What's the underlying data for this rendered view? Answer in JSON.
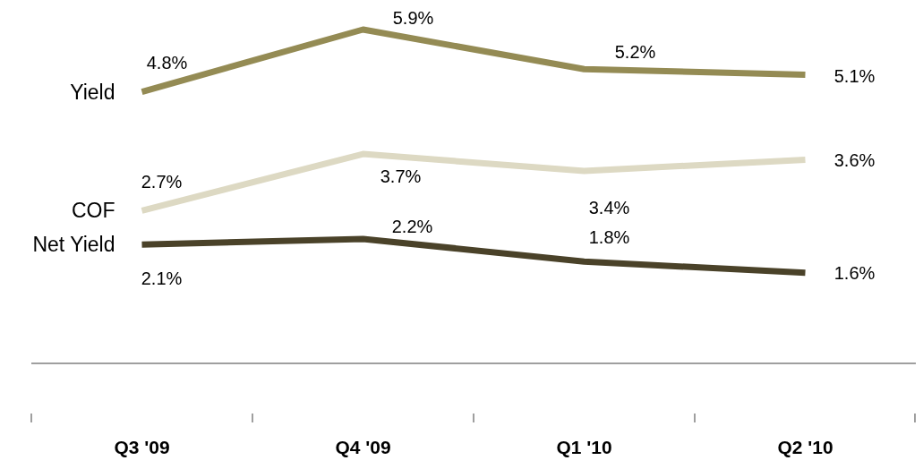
{
  "chart_data": {
    "type": "line",
    "categories": [
      "Q3 '09",
      "Q4 '09",
      "Q1 '10",
      "Q2 '10"
    ],
    "series": [
      {
        "name": "Yield",
        "color": "#948b54",
        "values": [
          4.8,
          5.9,
          5.2,
          5.1
        ],
        "value_labels": [
          "4.8%",
          "5.9%",
          "5.2%",
          "5.1%"
        ]
      },
      {
        "name": "COF",
        "color": "#ddd9c3",
        "values": [
          2.7,
          3.7,
          3.4,
          3.6
        ],
        "value_labels": [
          "2.7%",
          "3.7%",
          "3.4%",
          "3.6%"
        ]
      },
      {
        "name": "Net Yield",
        "color": "#4a4229",
        "values": [
          2.1,
          2.2,
          1.8,
          1.6
        ],
        "value_labels": [
          "2.1%",
          "2.2%",
          "1.8%",
          "1.6%"
        ]
      }
    ]
  }
}
